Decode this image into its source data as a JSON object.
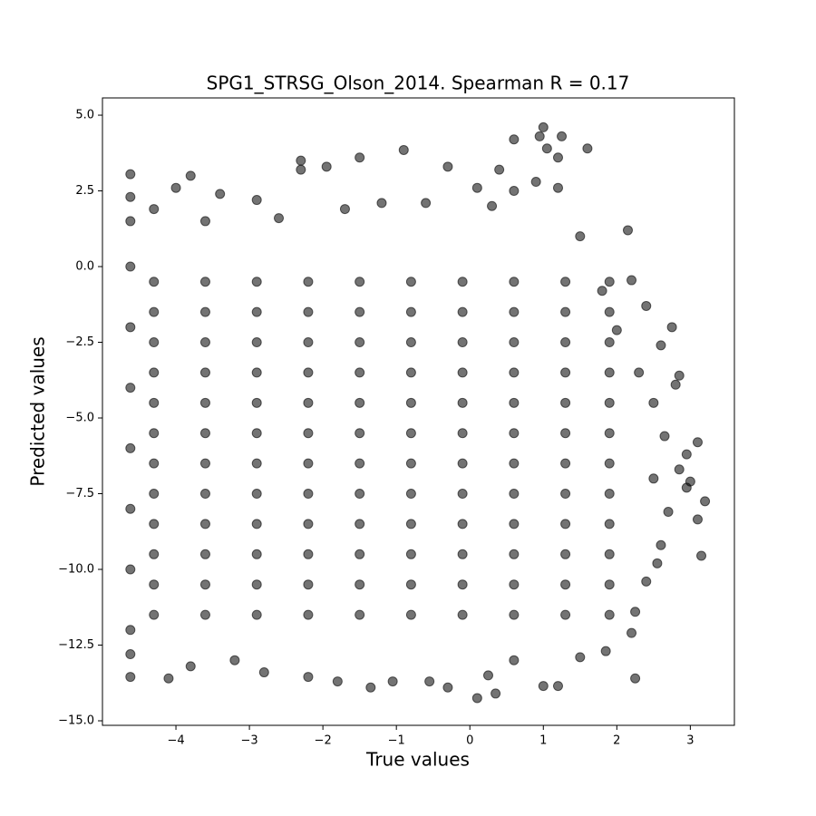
{
  "chart_data": {
    "type": "scatter",
    "title": "SPG1_STRSG_Olson_2014. Spearman R = 0.17",
    "x_label": "True values",
    "y_label": "Predicted values",
    "color": "#000000",
    "xlim": [
      -5.0,
      3.6
    ],
    "ylim": [
      -15.15,
      5.57
    ],
    "xticks": [
      {
        "value": -4,
        "label": "−4"
      },
      {
        "value": -3,
        "label": "−3"
      },
      {
        "value": -2,
        "label": "−2"
      },
      {
        "value": -1,
        "label": "−1"
      },
      0,
      1,
      2,
      3
    ],
    "yticks": [
      {
        "value": 5,
        "label": "5.0"
      },
      2.5,
      {
        "value": 0,
        "label": "0.0"
      },
      {
        "value": -2.5,
        "label": "−2.5"
      },
      {
        "value": -5,
        "label": "−5.0"
      },
      {
        "value": -7.5,
        "label": "−7.5"
      },
      {
        "value": -10,
        "label": "−10.0"
      },
      {
        "value": -12.5,
        "label": "−12.5"
      },
      {
        "value": -15,
        "label": "−15.0"
      }
    ],
    "x": [
      -4.62,
      -4.62,
      -4.62,
      -4.62,
      -4.62,
      -4.62,
      -4.62,
      -4.62,
      -4.62,
      -4.62,
      -4.62,
      -4.62,
      -4.0,
      -3.8,
      -3.4,
      -2.9,
      -2.3,
      -2.3,
      -1.95,
      -1.5,
      -1.2,
      -0.9,
      -0.3,
      0.1,
      0.4,
      0.6,
      0.95,
      1.0,
      1.25,
      1.2,
      1.6,
      1.05,
      -4.3,
      -3.6,
      -2.6,
      -1.7,
      -0.6,
      0.3,
      2.15,
      1.8,
      2.2,
      2.0,
      2.4,
      2.75,
      2.3,
      2.6,
      2.85,
      2.8,
      2.5,
      2.65,
      2.95,
      2.85,
      3.1,
      2.5,
      3.0,
      2.95,
      3.2,
      2.7,
      3.1,
      2.6,
      3.15,
      2.55,
      2.4,
      2.25,
      2.2,
      2.25,
      -4.1,
      -3.8,
      -3.2,
      -2.8,
      -2.2,
      -1.8,
      -1.35,
      -1.05,
      -0.55,
      -0.3,
      0.1,
      0.35,
      0.25,
      1.0,
      1.2,
      0.6,
      1.5,
      1.85,
      0.6,
      0.9,
      1.2,
      1.5,
      -4.3,
      -3.6,
      -2.9,
      -2.2,
      -1.5,
      -0.8,
      -0.1,
      0.6,
      1.3,
      1.9,
      -4.3,
      -3.6,
      -2.9,
      -2.2,
      -1.5,
      -0.8,
      -0.1,
      0.6,
      1.3,
      1.9,
      -4.3,
      -3.6,
      -2.9,
      -2.2,
      -1.5,
      -0.8,
      -0.1,
      0.6,
      1.3,
      1.9,
      -4.3,
      -3.6,
      -2.9,
      -2.2,
      -1.5,
      -0.8,
      -0.1,
      0.6,
      1.3,
      1.9,
      -4.3,
      -3.6,
      -2.9,
      -2.2,
      -1.5,
      -0.8,
      -0.1,
      0.6,
      1.3,
      1.9,
      -4.3,
      -3.6,
      -2.9,
      -2.2,
      -1.5,
      -0.8,
      -0.1,
      0.6,
      1.3,
      1.9,
      -4.3,
      -3.6,
      -2.9,
      -2.2,
      -1.5,
      -0.8,
      -0.1,
      0.6,
      1.3,
      1.9,
      -4.3,
      -3.6,
      -2.9,
      -2.2,
      -1.5,
      -0.8,
      -0.1,
      0.6,
      1.3,
      1.9,
      -4.3,
      -3.6,
      -2.9,
      -2.2,
      -1.5,
      -0.8,
      -0.1,
      0.6,
      1.3,
      1.9,
      -4.3,
      -3.6,
      -2.9,
      -2.2,
      -1.5,
      -0.8,
      -0.1,
      0.6,
      1.3,
      1.9,
      -4.3,
      -3.6,
      -2.9,
      -2.2,
      -1.5,
      -0.8,
      -0.1,
      0.6,
      1.3,
      1.9,
      -4.3,
      -3.6,
      -2.9,
      -2.2,
      -1.5,
      -0.8,
      -0.1,
      0.6,
      1.3,
      1.9
    ],
    "y": [
      3.05,
      2.3,
      1.5,
      0,
      -2,
      -4,
      -6,
      -8,
      -10,
      -12,
      -13.55,
      -12.8,
      2.6,
      3.0,
      2.4,
      2.2,
      3.5,
      3.2,
      3.3,
      3.6,
      2.1,
      3.85,
      3.3,
      2.6,
      3.2,
      4.2,
      4.3,
      4.6,
      4.3,
      3.6,
      3.9,
      3.9,
      1.9,
      1.5,
      1.6,
      1.9,
      2.1,
      2.0,
      1.2,
      -0.8,
      -0.45,
      -2.1,
      -1.3,
      -2.0,
      -3.5,
      -2.6,
      -3.6,
      -3.9,
      -4.5,
      -5.6,
      -6.2,
      -6.7,
      -5.8,
      -7.0,
      -7.1,
      -7.3,
      -7.75,
      -8.1,
      -8.35,
      -9.2,
      -9.55,
      -9.8,
      -10.4,
      -11.4,
      -12.1,
      -13.6,
      -13.6,
      -13.2,
      -13.0,
      -13.4,
      -13.55,
      -13.7,
      -13.9,
      -13.7,
      -13.7,
      -13.9,
      -14.25,
      -14.1,
      -13.5,
      -13.85,
      -13.85,
      -13.0,
      -12.9,
      -12.7,
      2.5,
      2.8,
      2.6,
      1.0,
      -0.5,
      -0.5,
      -0.5,
      -0.5,
      -0.5,
      -0.5,
      -0.5,
      -0.5,
      -0.5,
      -0.5,
      -1.5,
      -1.5,
      -1.5,
      -1.5,
      -1.5,
      -1.5,
      -1.5,
      -1.5,
      -1.5,
      -1.5,
      -2.5,
      -2.5,
      -2.5,
      -2.5,
      -2.5,
      -2.5,
      -2.5,
      -2.5,
      -2.5,
      -2.5,
      -3.5,
      -3.5,
      -3.5,
      -3.5,
      -3.5,
      -3.5,
      -3.5,
      -3.5,
      -3.5,
      -3.5,
      -4.5,
      -4.5,
      -4.5,
      -4.5,
      -4.5,
      -4.5,
      -4.5,
      -4.5,
      -4.5,
      -4.5,
      -5.5,
      -5.5,
      -5.5,
      -5.5,
      -5.5,
      -5.5,
      -5.5,
      -5.5,
      -5.5,
      -5.5,
      -6.5,
      -6.5,
      -6.5,
      -6.5,
      -6.5,
      -6.5,
      -6.5,
      -6.5,
      -6.5,
      -6.5,
      -7.5,
      -7.5,
      -7.5,
      -7.5,
      -7.5,
      -7.5,
      -7.5,
      -7.5,
      -7.5,
      -7.5,
      -8.5,
      -8.5,
      -8.5,
      -8.5,
      -8.5,
      -8.5,
      -8.5,
      -8.5,
      -8.5,
      -8.5,
      -9.5,
      -9.5,
      -9.5,
      -9.5,
      -9.5,
      -9.5,
      -9.5,
      -9.5,
      -9.5,
      -9.5,
      -10.5,
      -10.5,
      -10.5,
      -10.5,
      -10.5,
      -10.5,
      -10.5,
      -10.5,
      -10.5,
      -10.5,
      -11.5,
      -11.5,
      -11.5,
      -11.5,
      -11.5,
      -11.5,
      -11.5,
      -11.5,
      -11.5,
      -11.5
    ]
  }
}
